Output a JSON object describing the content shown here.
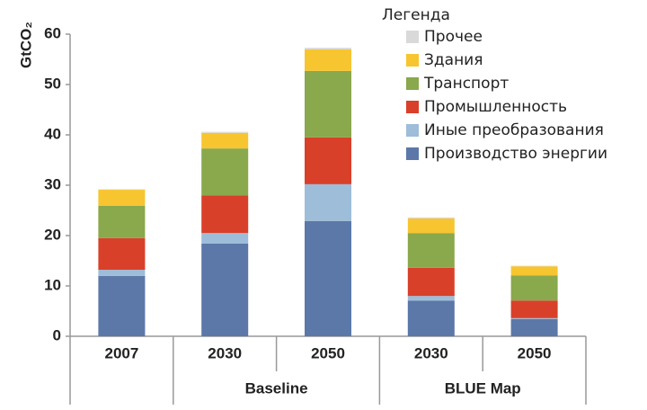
{
  "chart_data": {
    "type": "stacked_bar",
    "y_label": "GtCO₂",
    "legend_title": "Легенда",
    "categories": [
      "2007",
      "2030",
      "2050",
      "2030",
      "2050"
    ],
    "group_labels": [
      null,
      "Baseline",
      "Baseline",
      "BLUE Map",
      "BLUE Map"
    ],
    "series": [
      {
        "name": "Производство энергии",
        "color": "#5b78a8",
        "values": [
          12.0,
          18.4,
          22.9,
          7.1,
          3.4
        ]
      },
      {
        "name": "Иные преобразования",
        "color": "#9dbdd9",
        "values": [
          1.2,
          2.1,
          7.3,
          0.9,
          0.2
        ]
      },
      {
        "name": "Промышленность",
        "color": "#d9402a",
        "values": [
          6.3,
          7.5,
          9.3,
          5.6,
          3.5
        ]
      },
      {
        "name": "Транспорт",
        "color": "#8aa84c",
        "values": [
          6.4,
          9.3,
          13.2,
          6.9,
          5.0
        ]
      },
      {
        "name": "Здания",
        "color": "#f7c530",
        "values": [
          3.2,
          3.1,
          4.3,
          2.9,
          1.8
        ]
      },
      {
        "name": "Прочее",
        "color": "#d9d9d9",
        "values": [
          0.1,
          0.2,
          0.3,
          0.2,
          0.1
        ]
      }
    ],
    "ylim": [
      0,
      60
    ],
    "yticks": [
      0,
      10,
      20,
      30,
      40,
      50,
      60
    ],
    "grid": false,
    "legend": "top-right"
  }
}
